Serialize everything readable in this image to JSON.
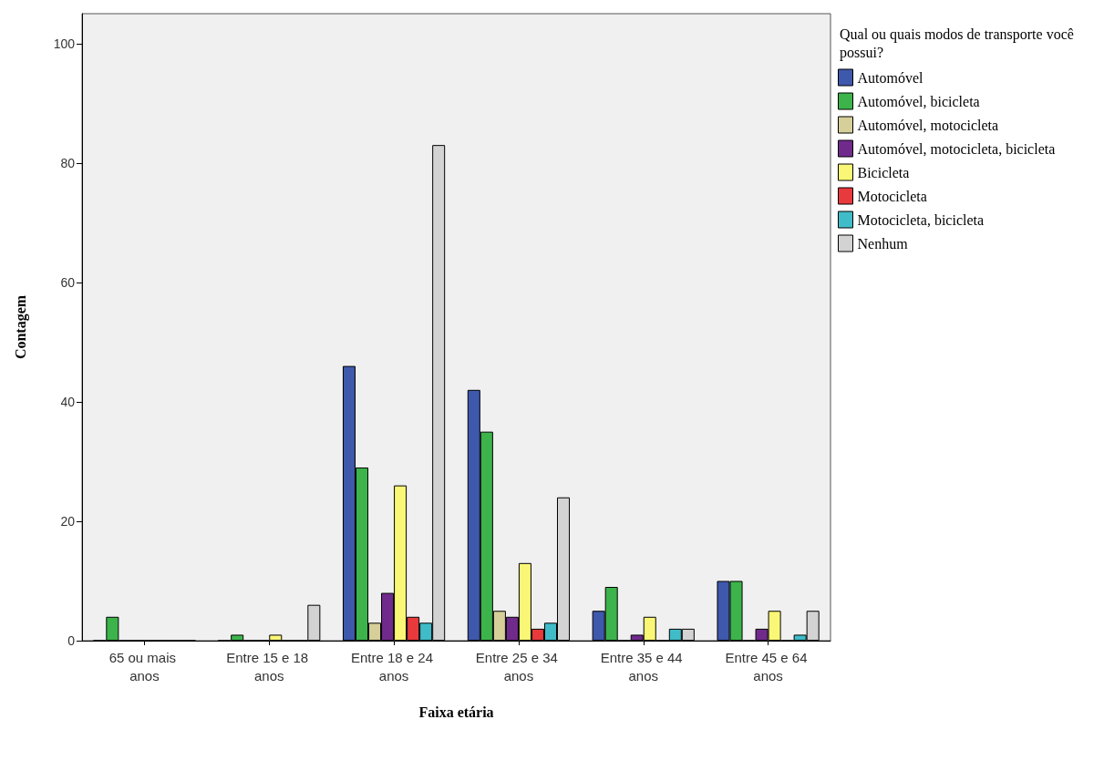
{
  "chart_data": {
    "type": "bar",
    "xlabel": "Faixa etária",
    "ylabel": "Contagem",
    "legend_title": "Qual ou quais modos de transporte você possui?",
    "categories": [
      "65 ou mais anos",
      "Entre 15 e 18 anos",
      "Entre 18 e 24 anos",
      "Entre 25 e 34 anos",
      "Entre 35 e 44 anos",
      "Entre 45 e 64 anos"
    ],
    "series": [
      {
        "name": "Automóvel",
        "color": "#3e58ac",
        "values": [
          0,
          0,
          46,
          42,
          5,
          10
        ]
      },
      {
        "name": "Automóvel, bicicleta",
        "color": "#3cb44b",
        "values": [
          4,
          1,
          29,
          35,
          9,
          10
        ]
      },
      {
        "name": "Automóvel, motocicleta",
        "color": "#d6cf9a",
        "values": [
          0,
          0,
          3,
          5,
          0,
          0
        ]
      },
      {
        "name": "Automóvel, motocicleta, bicicleta",
        "color": "#702a8c",
        "values": [
          0,
          0,
          8,
          4,
          1,
          2
        ]
      },
      {
        "name": "Bicicleta",
        "color": "#fbf776",
        "values": [
          0,
          1,
          26,
          13,
          4,
          5
        ]
      },
      {
        "name": "Motocicleta",
        "color": "#e8393c",
        "values": [
          0,
          0,
          4,
          2,
          0,
          0
        ]
      },
      {
        "name": "Motocicleta, bicicleta",
        "color": "#3fbcc7",
        "values": [
          0,
          0,
          3,
          3,
          2,
          1
        ]
      },
      {
        "name": "Nenhum",
        "color": "#d3d3d3",
        "values": [
          0,
          6,
          83,
          24,
          2,
          5
        ]
      }
    ],
    "ylim": [
      0,
      105
    ],
    "yticks": [
      0,
      20,
      40,
      60,
      80,
      100
    ],
    "grid": false,
    "legend": "right"
  }
}
